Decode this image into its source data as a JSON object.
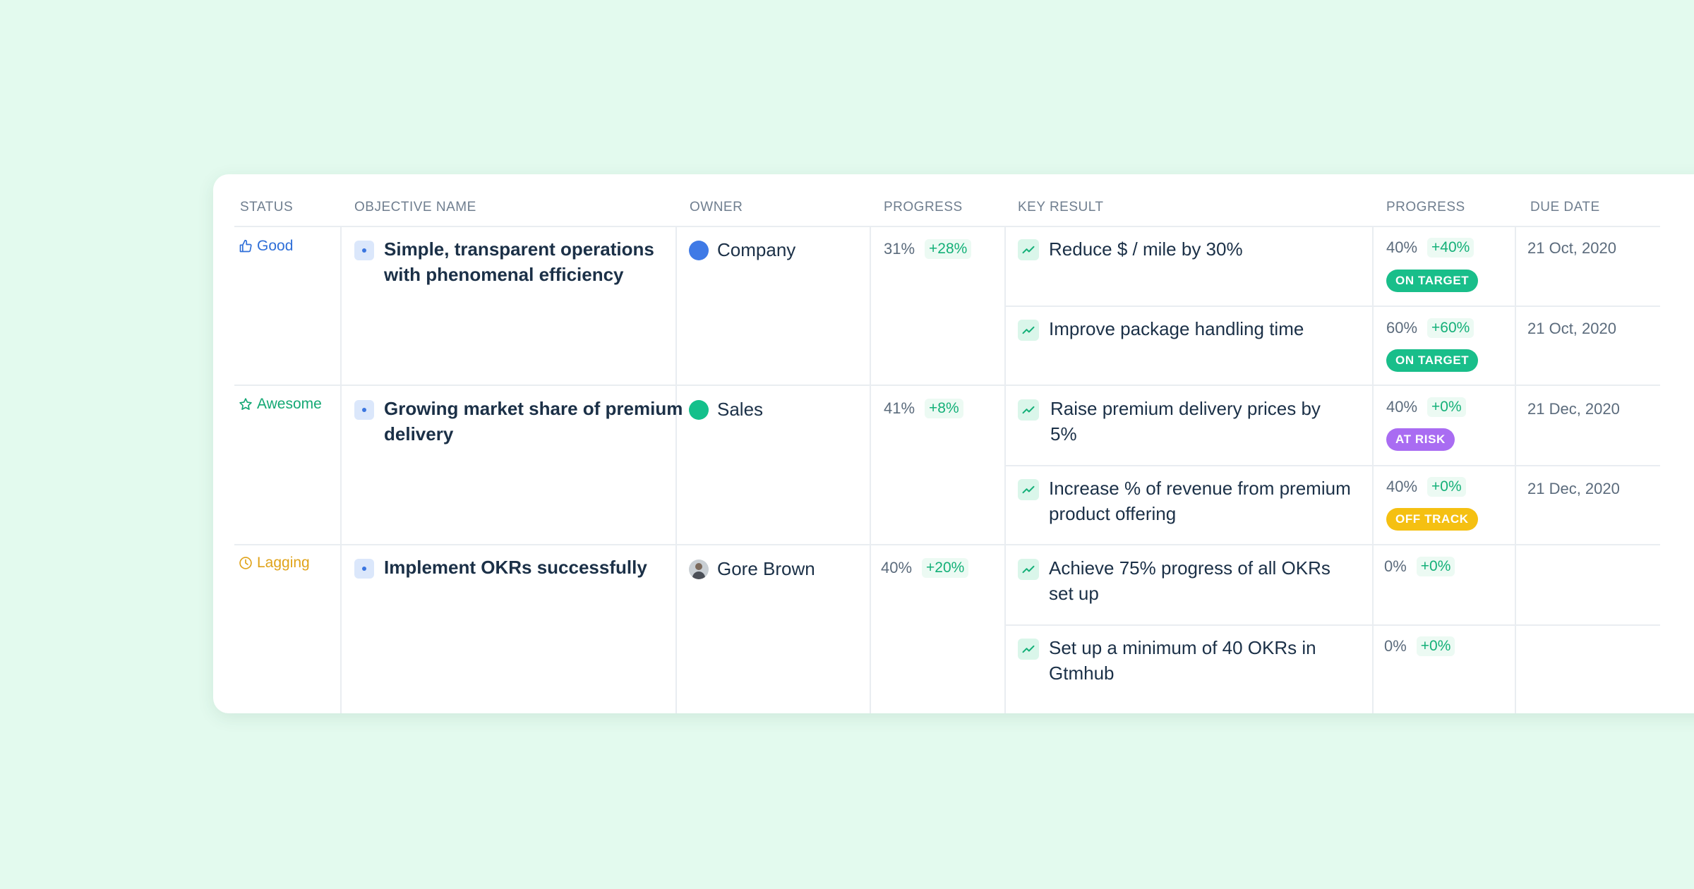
{
  "columns": {
    "status": "STATUS",
    "objective": "OBJECTIVE NAME",
    "owner": "OWNER",
    "progress": "PROGRESS",
    "key_result": "KEY RESULT",
    "kr_progress": "PROGRESS",
    "due_date": "DUE DATE"
  },
  "objectives": [
    {
      "status": "Good",
      "status_icon": "thumbs-up-icon",
      "status_color": "#2f6fd8",
      "name": "Simple, transparent operations with phenomenal efficiency",
      "owner": "Company",
      "owner_color": "#3f7ae6",
      "progress": "31%",
      "delta": "+28%",
      "key_results": [
        {
          "name": "Reduce $ / mile by 30%",
          "progress": "40%",
          "delta": "+40%",
          "badge": "ON TARGET",
          "badge_color": "#19be8a",
          "due": "21 Oct, 2020"
        },
        {
          "name": "Improve package handling time",
          "progress": "60%",
          "delta": "+60%",
          "badge": "ON TARGET",
          "badge_color": "#19be8a",
          "due": "21 Oct, 2020"
        }
      ]
    },
    {
      "status": "Awesome",
      "status_icon": "star-icon",
      "status_color": "#14a874",
      "name": "Growing market share of premium delivery",
      "owner": "Sales",
      "owner_color": "#14c08b",
      "progress": "41%",
      "delta": "+8%",
      "key_results": [
        {
          "name": "Raise premium delivery prices by 5%",
          "progress": "40%",
          "delta": "+0%",
          "badge": "AT RISK",
          "badge_color": "#a96cf2",
          "due": "21 Dec, 2020"
        },
        {
          "name": "Increase % of revenue from premium product offering",
          "progress": "40%",
          "delta": "+0%",
          "badge": "OFF TRACK",
          "badge_color": "#f5c012",
          "due": "21 Dec, 2020"
        }
      ]
    },
    {
      "status": "Lagging",
      "status_icon": "clock-icon",
      "status_color": "#e0a31a",
      "name": "Implement OKRs successfully",
      "owner": "Gore Brown",
      "owner_icon": "avatar",
      "progress": "40%",
      "delta": "+20%",
      "key_results": [
        {
          "name": "Achieve 75% progress of all OKRs set up",
          "progress": "0%",
          "delta": "+0%",
          "badge": "",
          "due": ""
        },
        {
          "name": "Set up a minimum of 40 OKRs in Gtmhub",
          "progress": "0%",
          "delta": "+0%",
          "badge": "",
          "due": ""
        }
      ]
    }
  ]
}
